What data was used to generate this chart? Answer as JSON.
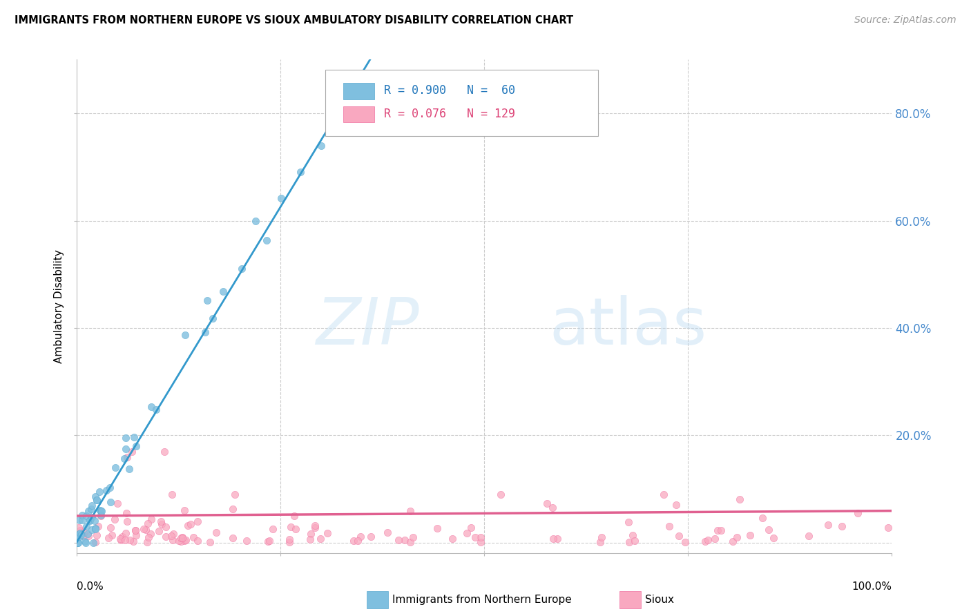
{
  "title": "IMMIGRANTS FROM NORTHERN EUROPE VS SIOUX AMBULATORY DISABILITY CORRELATION CHART",
  "source": "Source: ZipAtlas.com",
  "ylabel": "Ambulatory Disability",
  "legend_label_blue": "Immigrants from Northern Europe",
  "legend_label_pink": "Sioux",
  "blue_color": "#7fbfdf",
  "blue_edge_color": "#5aaad0",
  "blue_line_color": "#3399cc",
  "pink_color": "#f9a8c0",
  "pink_edge_color": "#f070a0",
  "pink_line_color": "#e06090",
  "watermark_color": "#d8eef8",
  "grid_color": "#cccccc",
  "right_tick_color": "#4488cc",
  "background_color": "#ffffff",
  "xlim": [
    0.0,
    1.0
  ],
  "ylim": [
    -0.02,
    0.9
  ],
  "right_ytick_vals": [
    0.0,
    0.2,
    0.4,
    0.6,
    0.8
  ],
  "right_ytick_labels": [
    "",
    "20.0%",
    "40.0%",
    "60.0%",
    "80.0%"
  ]
}
